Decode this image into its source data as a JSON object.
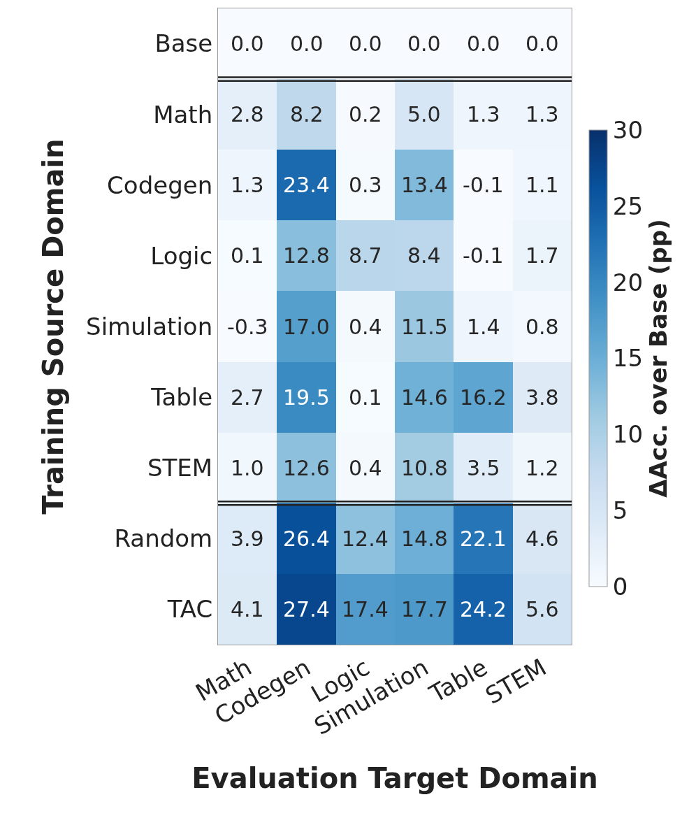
{
  "chart_data": {
    "type": "heatmap",
    "xlabel": "Evaluation Target Domain",
    "ylabel": "Training Source Domain",
    "clabel": "ΔAcc. over Base (pp)",
    "categories": [
      "Math",
      "Codegen",
      "Logic",
      "Simulation",
      "Table",
      "STEM"
    ],
    "y_categories": [
      "Base",
      "Math",
      "Codegen",
      "Logic",
      "Simulation",
      "Table",
      "STEM",
      "Random",
      "TAC"
    ],
    "cells": [
      [
        0.0,
        0.0,
        0.0,
        0.0,
        0.0,
        0.0
      ],
      [
        2.8,
        8.2,
        0.2,
        5.0,
        1.3,
        1.3
      ],
      [
        1.3,
        23.4,
        0.3,
        13.4,
        -0.1,
        1.1
      ],
      [
        0.1,
        12.8,
        8.7,
        8.4,
        -0.1,
        1.7
      ],
      [
        -0.3,
        17.0,
        0.4,
        11.5,
        1.4,
        0.8
      ],
      [
        2.7,
        19.5,
        0.1,
        14.6,
        16.2,
        3.8
      ],
      [
        1.0,
        12.6,
        0.4,
        10.8,
        3.5,
        1.2
      ],
      [
        3.9,
        26.4,
        12.4,
        14.8,
        22.1,
        4.6
      ],
      [
        4.1,
        27.4,
        17.4,
        17.7,
        24.2,
        5.6
      ]
    ],
    "cell_labels": [
      [
        "0.0",
        "0.0",
        "0.0",
        "0.0",
        "0.0",
        "0.0"
      ],
      [
        "2.8",
        "8.2",
        "0.2",
        "5.0",
        "1.3",
        "1.3"
      ],
      [
        "1.3",
        "23.4",
        "0.3",
        "13.4",
        "-0.1",
        "1.1"
      ],
      [
        "0.1",
        "12.8",
        "8.7",
        "8.4",
        "-0.1",
        "1.7"
      ],
      [
        "-0.3",
        "17.0",
        "0.4",
        "11.5",
        "1.4",
        "0.8"
      ],
      [
        "2.7",
        "19.5",
        "0.1",
        "14.6",
        "16.2",
        "3.8"
      ],
      [
        "1.0",
        "12.6",
        "0.4",
        "10.8",
        "3.5",
        "1.2"
      ],
      [
        "3.9",
        "26.4",
        "12.4",
        "14.8",
        "22.1",
        "4.6"
      ],
      [
        "4.1",
        "27.4",
        "17.4",
        "17.7",
        "24.2",
        "5.6"
      ]
    ],
    "clim": [
      0,
      30
    ],
    "cticks": [
      0,
      5,
      10,
      15,
      20,
      25,
      30
    ]
  }
}
